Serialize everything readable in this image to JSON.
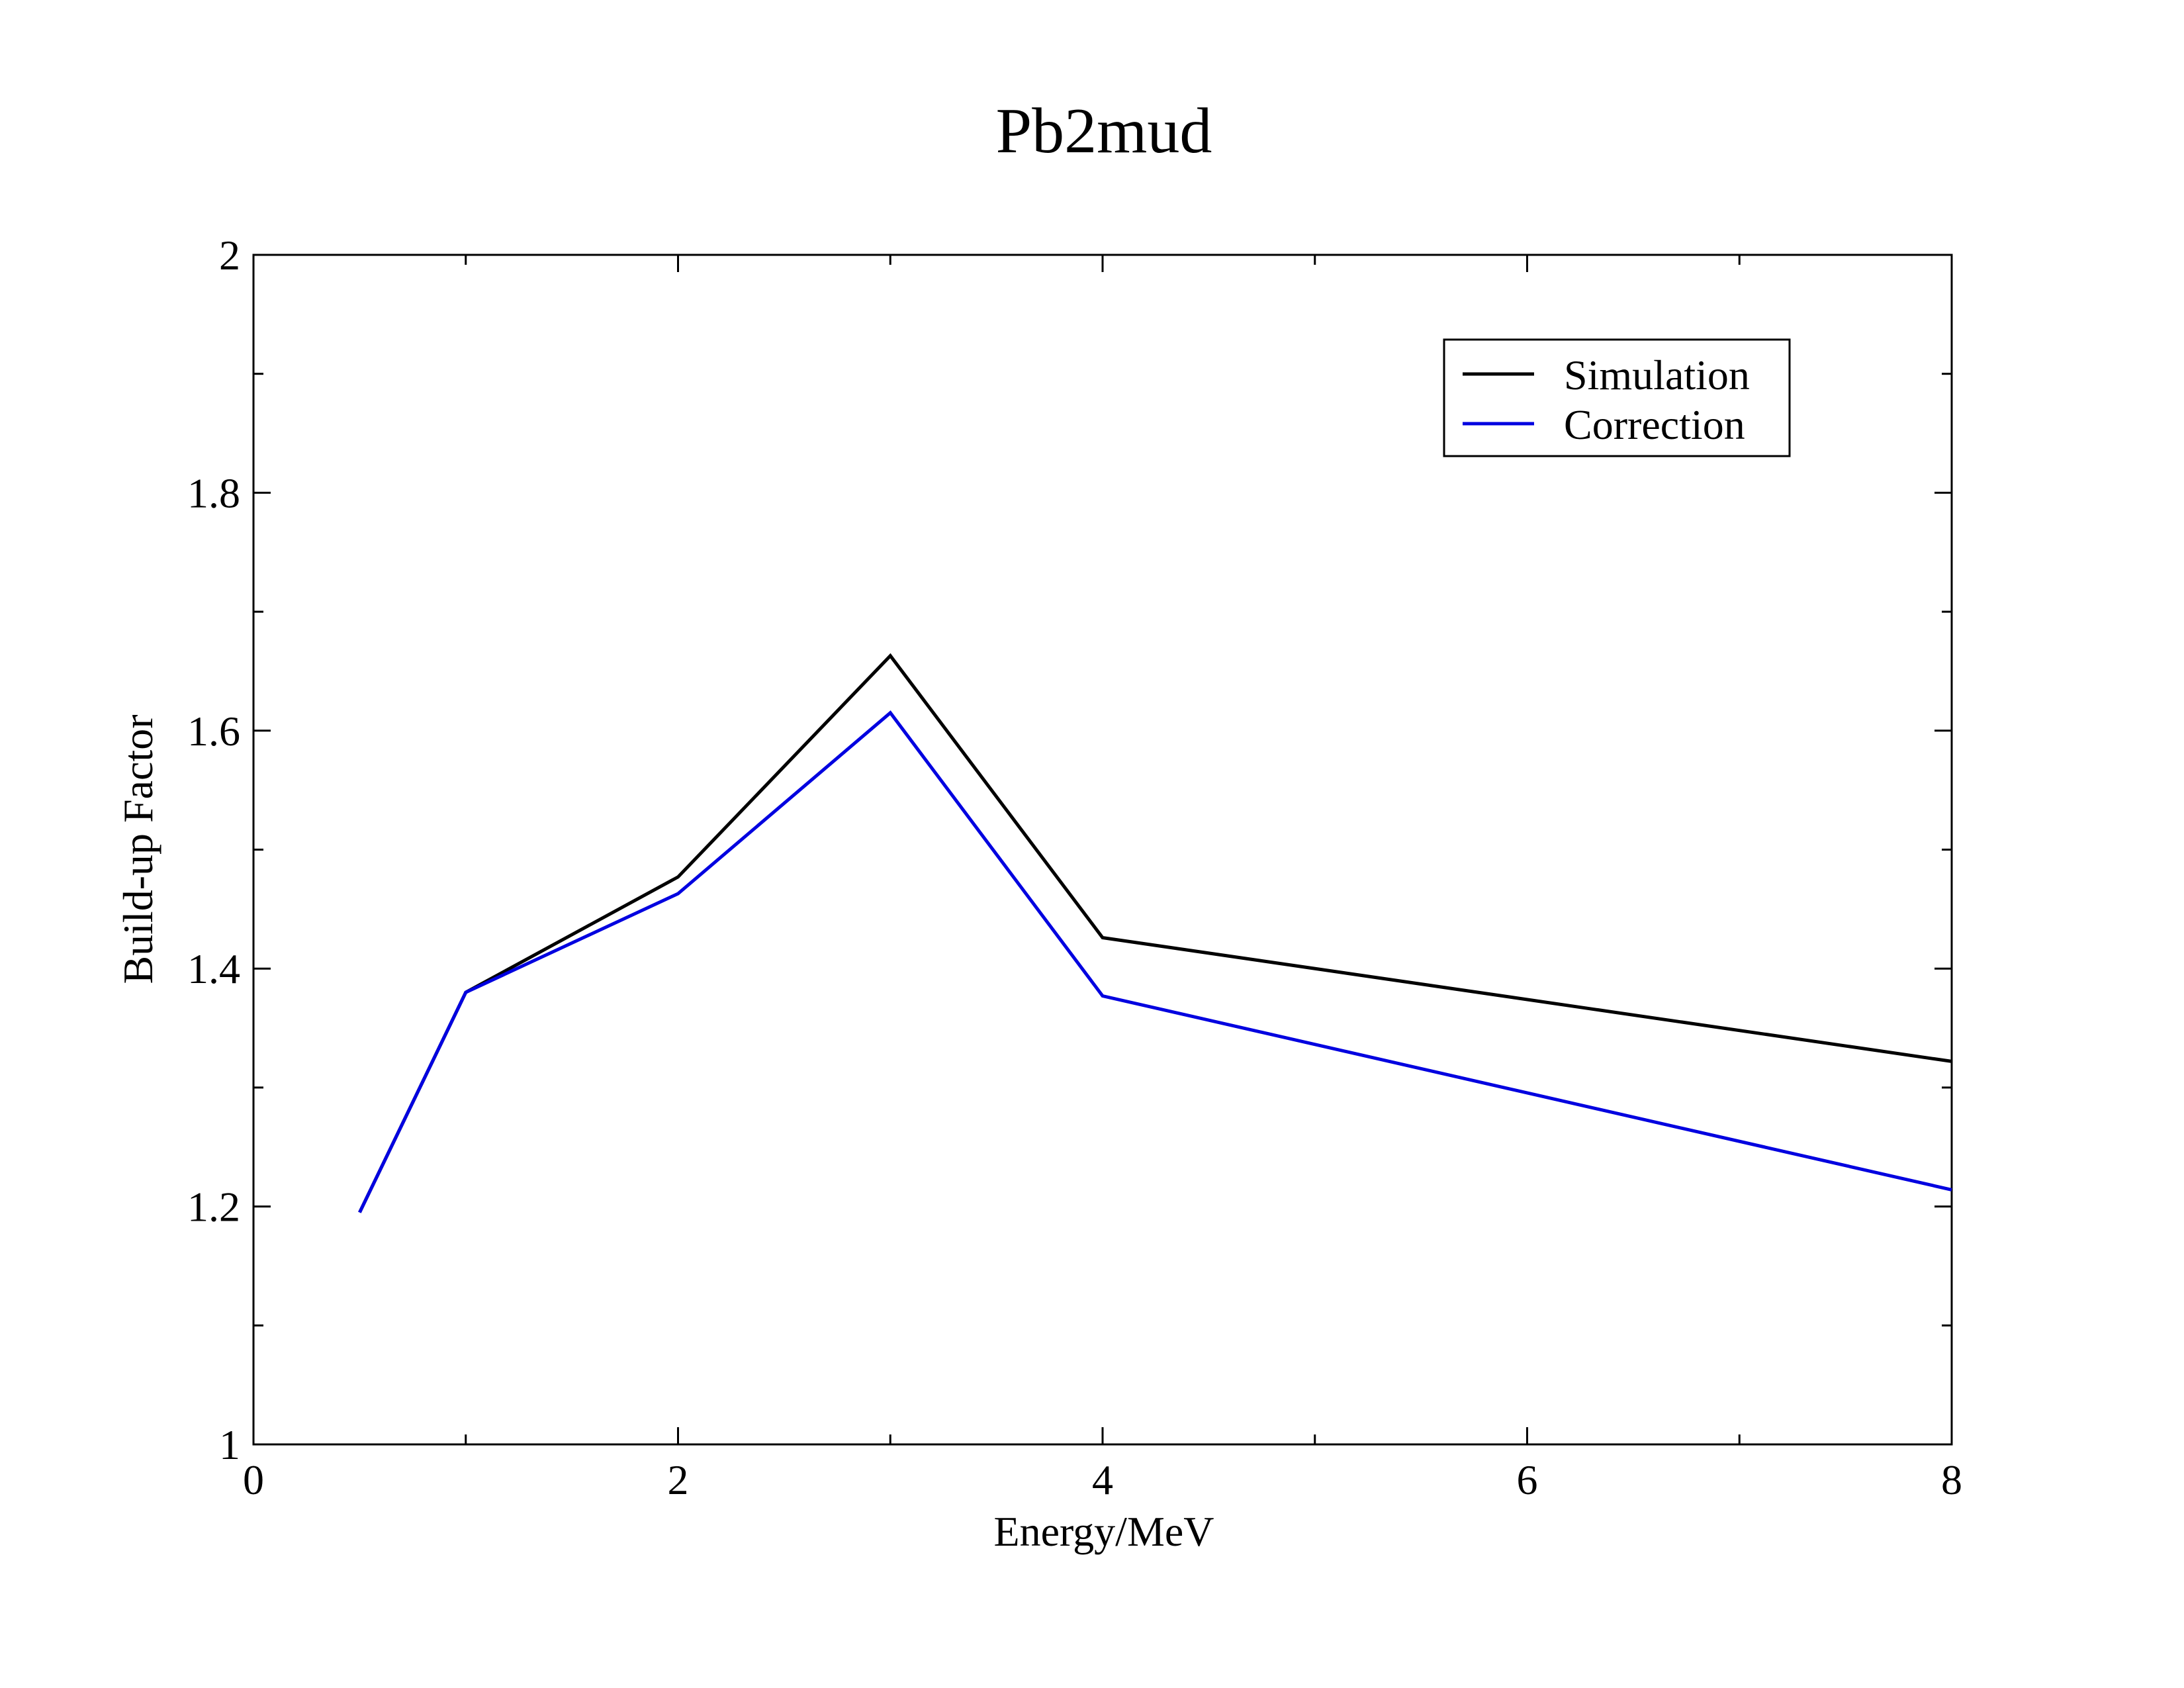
{
  "chart_data": {
    "type": "line",
    "title": "Pb2mud",
    "xlabel": "Energy/MeV",
    "ylabel": "Build-up Factor",
    "xlim": [
      0,
      8
    ],
    "ylim": [
      1,
      2
    ],
    "x_ticks": [
      0,
      2,
      4,
      6,
      8
    ],
    "x_minor_ticks": [
      1,
      3,
      5,
      7
    ],
    "y_ticks": [
      1,
      1.2,
      1.4,
      1.6,
      1.8,
      2
    ],
    "y_tick_labels": [
      "1",
      "1.2",
      "1.4",
      "1.6",
      "1.8",
      "2"
    ],
    "y_minor_ticks": [
      1.1,
      1.3,
      1.5,
      1.7,
      1.9
    ],
    "grid": false,
    "legend_position": "top-right",
    "series": [
      {
        "name": "Simulation",
        "color": "#000000",
        "x": [
          0.5,
          1,
          2,
          3,
          4,
          8
        ],
        "y": [
          1.195,
          1.38,
          1.477,
          1.663,
          1.426,
          1.322
        ]
      },
      {
        "name": "Correction",
        "color": "#0000e0",
        "x": [
          0.5,
          1,
          2,
          3,
          4,
          8
        ],
        "y": [
          1.195,
          1.38,
          1.463,
          1.615,
          1.377,
          1.214
        ]
      }
    ]
  }
}
